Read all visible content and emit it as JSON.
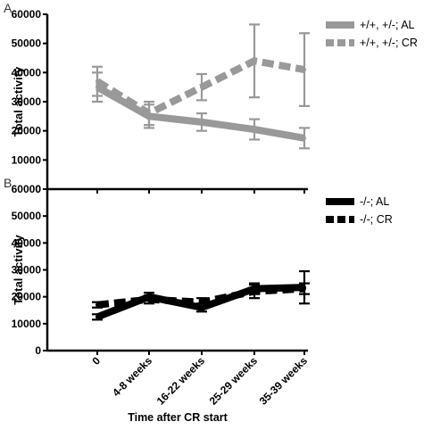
{
  "chart_data": [
    {
      "panel_label": "A",
      "type": "line",
      "ylabel": "Total activity",
      "ylim": [
        0,
        60000
      ],
      "yticks": [
        "0",
        "10000",
        "20000",
        "30000",
        "40000",
        "50000",
        "60000"
      ],
      "categories": [
        "0",
        "4-8 weeks",
        "16-22 weeks",
        "25-29 weeks",
        "35-39 weeks"
      ],
      "color": "#999999",
      "legend_position": "top-right",
      "series": [
        {
          "name": "+/+, +/-; AL",
          "style": "solid",
          "values": [
            35000,
            25000,
            23000,
            20500,
            17500
          ],
          "errors": [
            5000,
            4000,
            3000,
            3500,
            3500
          ]
        },
        {
          "name": "+/+, +/-; CR",
          "style": "dashed",
          "values": [
            37000,
            26000,
            35000,
            44000,
            41000
          ],
          "errors": [
            5000,
            4000,
            4500,
            12500,
            12500
          ]
        }
      ]
    },
    {
      "panel_label": "B",
      "type": "line",
      "ylabel": "Total activity",
      "xlabel": "Time after CR start",
      "ylim": [
        0,
        60000
      ],
      "yticks": [
        "0",
        "10000",
        "20000",
        "30000",
        "40000",
        "50000",
        "60000"
      ],
      "categories": [
        "0",
        "4-8 weeks",
        "16-22 weeks",
        "25-29 weeks",
        "35-39 weeks"
      ],
      "color": "#000000",
      "legend_position": "top-right",
      "series": [
        {
          "name": "-/-; AL",
          "style": "solid",
          "values": [
            12500,
            20000,
            16000,
            23000,
            23500
          ],
          "errors": [
            1000,
            1500,
            1500,
            2000,
            6000
          ]
        },
        {
          "name": "-/-; CR",
          "style": "dashed",
          "values": [
            17000,
            19000,
            18000,
            22000,
            23000
          ],
          "errors": [
            1000,
            1500,
            1500,
            2500,
            2000
          ]
        }
      ]
    }
  ]
}
